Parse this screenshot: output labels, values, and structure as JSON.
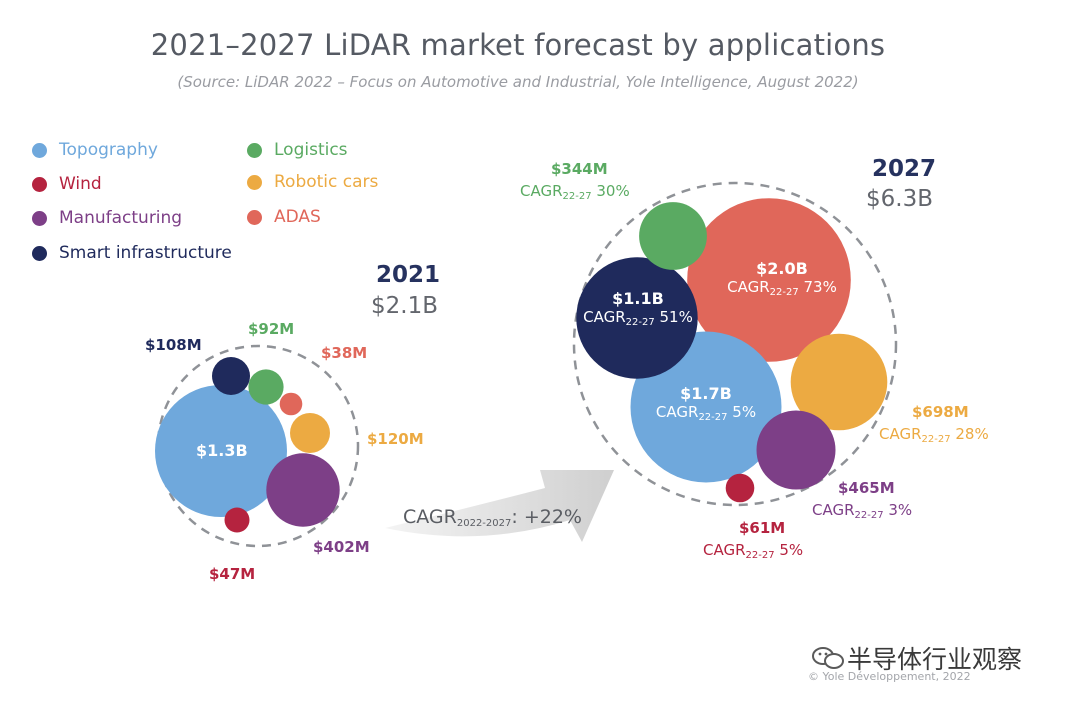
{
  "header": {
    "title": "2021–2027 LiDAR market forecast by applications",
    "source": "(Source:  LiDAR 2022 – Focus on Automotive and Industrial, Yole Intelligence, August 2022)"
  },
  "legend": [
    {
      "label": "Topography",
      "color": "#6fa8dc"
    },
    {
      "label": "Wind",
      "color": "#b5233f"
    },
    {
      "label": "Manufacturing",
      "color": "#7d3f87"
    },
    {
      "label": "Smart infrastructure",
      "color": "#1f2a5c"
    },
    {
      "label": "Logistics",
      "color": "#5aaa62"
    },
    {
      "label": "Robotic cars",
      "color": "#ecaa42"
    },
    {
      "label": "ADAS",
      "color": "#e0675a"
    }
  ],
  "chart_data": {
    "type": "bubble",
    "title": "2021–2027 LiDAR market forecast by applications",
    "unit": "USD",
    "arrow_label": {
      "prefix": "CAGR",
      "sub": "2022-2027",
      "suffix": ": +22%"
    },
    "groups": [
      {
        "year": "2021",
        "total": "$2.1B",
        "total_value_musd": 2100,
        "bubbles": [
          {
            "segment": "Topography",
            "value_musd": 1300,
            "label": "$1.3B"
          },
          {
            "segment": "Manufacturing",
            "value_musd": 402,
            "label": "$402M"
          },
          {
            "segment": "Robotic cars",
            "value_musd": 120,
            "label": "$120M"
          },
          {
            "segment": "Smart infrastructure",
            "value_musd": 108,
            "label": "$108M"
          },
          {
            "segment": "Logistics",
            "value_musd": 92,
            "label": "$92M"
          },
          {
            "segment": "Wind",
            "value_musd": 47,
            "label": "$47M"
          },
          {
            "segment": "ADAS",
            "value_musd": 38,
            "label": "$38M"
          }
        ]
      },
      {
        "year": "2027",
        "total": "$6.3B",
        "total_value_musd": 6300,
        "bubbles": [
          {
            "segment": "ADAS",
            "value_musd": 2000,
            "label": "$2.0B",
            "cagr_pct": 73
          },
          {
            "segment": "Topography",
            "value_musd": 1700,
            "label": "$1.7B",
            "cagr_pct": 5
          },
          {
            "segment": "Smart infrastructure",
            "value_musd": 1100,
            "label": "$1.1B",
            "cagr_pct": 51
          },
          {
            "segment": "Robotic cars",
            "value_musd": 698,
            "label": "$698M",
            "cagr_pct": 28
          },
          {
            "segment": "Manufacturing",
            "value_musd": 465,
            "label": "$465M",
            "cagr_pct": 3
          },
          {
            "segment": "Logistics",
            "value_musd": 344,
            "label": "$344M",
            "cagr_pct": 30
          },
          {
            "segment": "Wind",
            "value_musd": 61,
            "label": "$61M",
            "cagr_pct": 5
          }
        ]
      }
    ],
    "cagr_prefix": "CAGR",
    "cagr_sub": "22-27"
  },
  "watermark": {
    "text": "半导体行业观察",
    "icon": "wechat-icon"
  },
  "copyright": "© Yole Développement, 2022"
}
